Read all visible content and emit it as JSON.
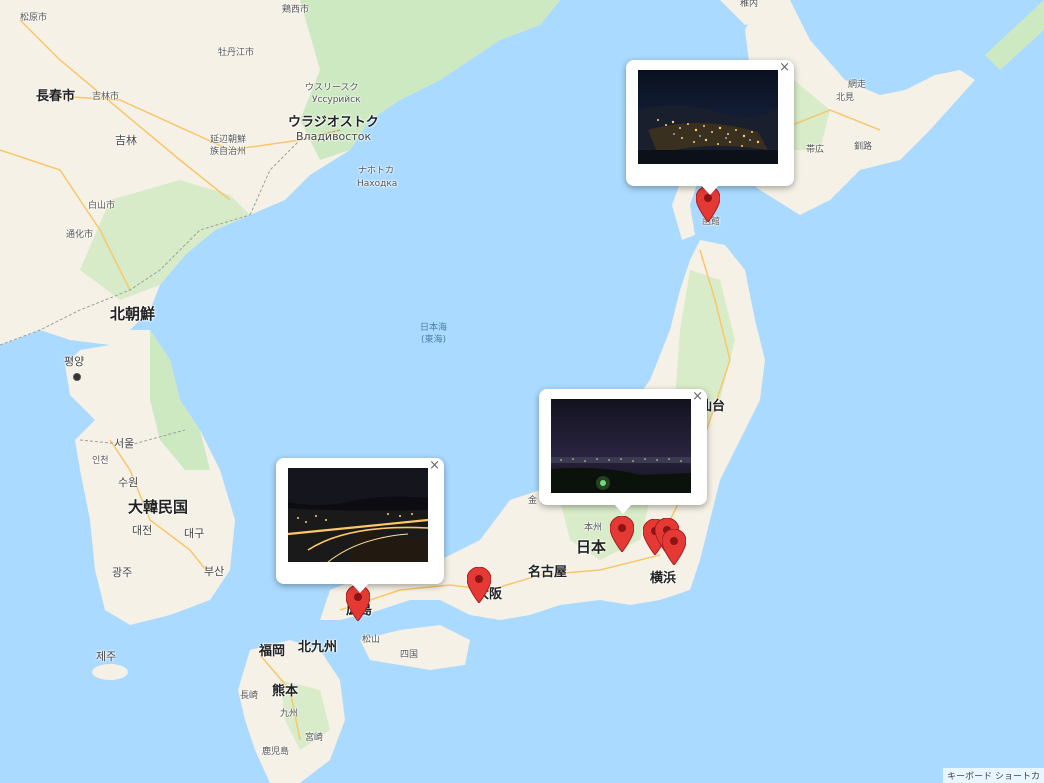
{
  "map": {
    "colors": {
      "sea": "#aadaff",
      "land": "#f5f1e6",
      "forest": "#cde9c2",
      "pin": "#e53935",
      "road": "#f7c76a"
    },
    "labels": {
      "matsubara": "松原市",
      "jixi": "鶏西市",
      "changchun": "長春市",
      "jilin_city": "吉林市",
      "mudanjiang": "牡丹江市",
      "jilin_prov": "吉林",
      "ussuriysk_ja": "ウスリースク",
      "ussuriysk_ru": "Уссурийск",
      "vladivostok_ja": "ウラジオストク",
      "vladivostok_ru": "Владивосток",
      "nakhodka_ja": "ナホトカ",
      "nakhodka_ru": "Находка",
      "yanbian": "延辺朝鮮\n族自治州",
      "baishan": "白山市",
      "tonghua": "通化市",
      "north_korea": "北朝鮮",
      "pyongyang": "평양",
      "sea_of_japan": "日本海\n(東海)",
      "seoul": "서울",
      "incheon": "인천",
      "suwon": "수원",
      "south_korea": "大韓民国",
      "daejeon": "대전",
      "daegu": "대구",
      "gwangju": "광주",
      "busan": "부산",
      "jeju": "제주",
      "wakkanai": "稚内",
      "abashiri": "網走",
      "kitami": "北見",
      "obihiro": "帯広",
      "kushiro": "釧路",
      "hakodate": "函館",
      "sendai": "仙台",
      "honshu": "本州",
      "japan": "日本",
      "nagoya": "名古屋",
      "yokohama": "横浜",
      "osaka": "大阪",
      "hiroshima": "広島",
      "matsuyama": "松山",
      "shikoku": "四国",
      "fukuoka": "福岡",
      "kitakyushu": "北九州",
      "kumamoto": "熊本",
      "nagasaki": "長崎",
      "kyushu": "九州",
      "miyazaki": "宮崎",
      "kagoshima": "鹿児島",
      "kanazawa": "金"
    },
    "footer": "キーボード ショートカ"
  },
  "popups": [
    {
      "id": "hakodate",
      "close": "×"
    },
    {
      "id": "kanto",
      "close": "×"
    },
    {
      "id": "hiroshima",
      "close": "×"
    }
  ],
  "icons": {
    "close": "close-icon",
    "pin": "map-marker-icon"
  }
}
